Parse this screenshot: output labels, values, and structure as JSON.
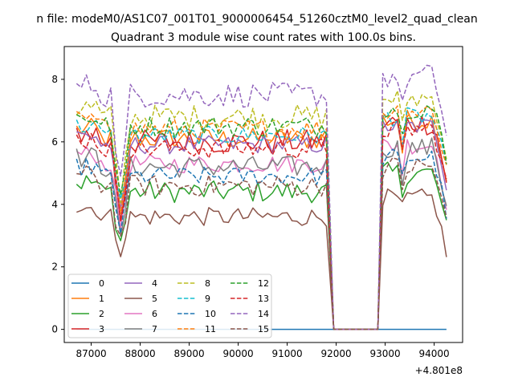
{
  "window_title": "n file: modeM0/AS1C07_001T01_9000006454_51260cztM0_level2_quad_clean",
  "chart_data": {
    "type": "line",
    "title": "Quadrant 3 module wise count rates with 100.0s bins.",
    "xlabel": "",
    "ylabel": "",
    "x_offset_label": "+4.801e8",
    "xlim": [
      86450,
      94580
    ],
    "ylim": [
      -0.42,
      9.05
    ],
    "x_ticks": [
      87000,
      88000,
      89000,
      90000,
      91000,
      92000,
      93000,
      94000
    ],
    "x_tick_labels": [
      "87000",
      "88000",
      "89000",
      "90000",
      "91000",
      "92000",
      "93000",
      "94000"
    ],
    "y_ticks": [
      0,
      2,
      4,
      6,
      8
    ],
    "y_tick_labels": [
      "0",
      "2",
      "4",
      "6",
      "8"
    ],
    "grid": false,
    "legend_placement": "lower-left",
    "legend_columns": 4,
    "x_segment_a": [
      86700,
      91850
    ],
    "x_segment_b": [
      92950,
      94250
    ],
    "gap": [
      91950,
      92850
    ],
    "series": [
      {
        "name": "0",
        "color": "#1f77b4",
        "dash": "solid",
        "level": 0,
        "amp": 0,
        "dip": 0
      },
      {
        "name": "1",
        "color": "#ff7f0e",
        "dash": "solid",
        "level": 6.1,
        "amp": 0.35,
        "dip": 2.5
      },
      {
        "name": "2",
        "color": "#2ca02c",
        "dash": "solid",
        "level": 4.4,
        "amp": 0.35,
        "dip": 1.6
      },
      {
        "name": "3",
        "color": "#d62728",
        "dash": "solid",
        "level": 6.0,
        "amp": 0.4,
        "dip": 2.4
      },
      {
        "name": "4",
        "color": "#9467bd",
        "dash": "solid",
        "level": 5.9,
        "amp": 0.3,
        "dip": 2.3
      },
      {
        "name": "5",
        "color": "#8c564b",
        "dash": "solid",
        "level": 3.6,
        "amp": 0.3,
        "dip": 1.0
      },
      {
        "name": "6",
        "color": "#e377c2",
        "dash": "solid",
        "level": 5.3,
        "amp": 0.3,
        "dip": 2.0
      },
      {
        "name": "7",
        "color": "#7f7f7f",
        "dash": "solid",
        "level": 5.2,
        "amp": 0.35,
        "dip": 2.4
      },
      {
        "name": "8",
        "color": "#bcbd22",
        "dash": "dashed",
        "level": 6.8,
        "amp": 0.4,
        "dip": 2.6
      },
      {
        "name": "9",
        "color": "#17becf",
        "dash": "dashed",
        "level": 6.2,
        "amp": 0.3,
        "dip": 2.2
      },
      {
        "name": "10",
        "color": "#1f77b4",
        "dash": "dashed",
        "level": 4.9,
        "amp": 0.3,
        "dip": 1.7
      },
      {
        "name": "11",
        "color": "#ff7f0e",
        "dash": "dashed",
        "level": 6.4,
        "amp": 0.35,
        "dip": 2.4
      },
      {
        "name": "12",
        "color": "#2ca02c",
        "dash": "dashed",
        "level": 6.5,
        "amp": 0.35,
        "dip": 2.5
      },
      {
        "name": "13",
        "color": "#d62728",
        "dash": "dashed",
        "level": 5.8,
        "amp": 0.35,
        "dip": 2.2
      },
      {
        "name": "14",
        "color": "#9467bd",
        "dash": "dashed",
        "level": 7.5,
        "amp": 0.4,
        "dip": 2.8
      },
      {
        "name": "15",
        "color": "#8c564b",
        "dash": "dashed",
        "level": 4.6,
        "amp": 0.35,
        "dip": 1.8
      }
    ]
  }
}
